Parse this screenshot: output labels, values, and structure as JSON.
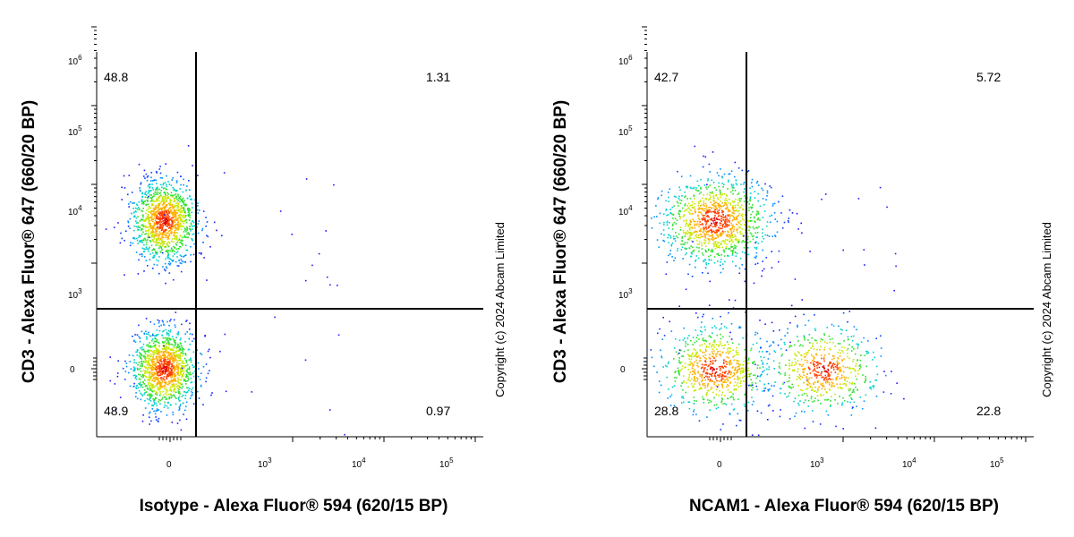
{
  "chart_data": [
    {
      "type": "scatter",
      "title": "",
      "xlabel": "Isotype - Alexa Fluor® 594 (620/15 BP)",
      "ylabel": "CD3 - Alexa Fluor® 647 (660/20 BP)",
      "x_scale": "biexponential",
      "y_scale": "biexponential",
      "x_ticks": [
        "0",
        "10^3",
        "10^4",
        "10^5"
      ],
      "y_ticks": [
        "0",
        "10^3",
        "10^4",
        "10^5",
        "10^6"
      ],
      "quadrant_gate": {
        "x": 450,
        "y": 650
      },
      "quadrants": {
        "top_left": "48.8",
        "top_right": "1.31",
        "bottom_left": "48.9",
        "bottom_right": "0.97"
      },
      "populations": [
        {
          "name": "",
          "center": {
            "x": -20,
            "y": 3500
          },
          "spread": "tight",
          "fraction": 0.49
        },
        {
          "name": "",
          "center": {
            "x": -20,
            "y": 0
          },
          "spread": "tight",
          "fraction": 0.49
        }
      ],
      "grid": false,
      "copyright": "Copyright (c) 2024 Abcam Limited"
    },
    {
      "type": "scatter",
      "title": "",
      "xlabel": "NCAM1 - Alexa Fluor® 594 (620/15 BP)",
      "ylabel": "CD3 - Alexa Fluor® 647 (660/20 BP)",
      "x_scale": "biexponential",
      "y_scale": "biexponential",
      "x_ticks": [
        "0",
        "10^3",
        "10^4",
        "10^5"
      ],
      "y_ticks": [
        "0",
        "10^3",
        "10^4",
        "10^5",
        "10^6"
      ],
      "quadrant_gate": {
        "x": 450,
        "y": 650
      },
      "quadrants": {
        "top_left": "42.7",
        "top_right": "5.72",
        "bottom_left": "28.8",
        "bottom_right": "22.8"
      },
      "populations": [
        {
          "name": "",
          "center": {
            "x": -20,
            "y": 3500
          },
          "spread": "wide",
          "fraction": 0.43
        },
        {
          "name": "",
          "center": {
            "x": -20,
            "y": 0
          },
          "spread": "wide",
          "fraction": 0.29
        },
        {
          "name": "",
          "center": {
            "x": 600,
            "y": 0
          },
          "spread": "wide",
          "fraction": 0.23
        }
      ],
      "grid": false,
      "copyright": "Copyright (c) 2024 Abcam Limited"
    }
  ]
}
